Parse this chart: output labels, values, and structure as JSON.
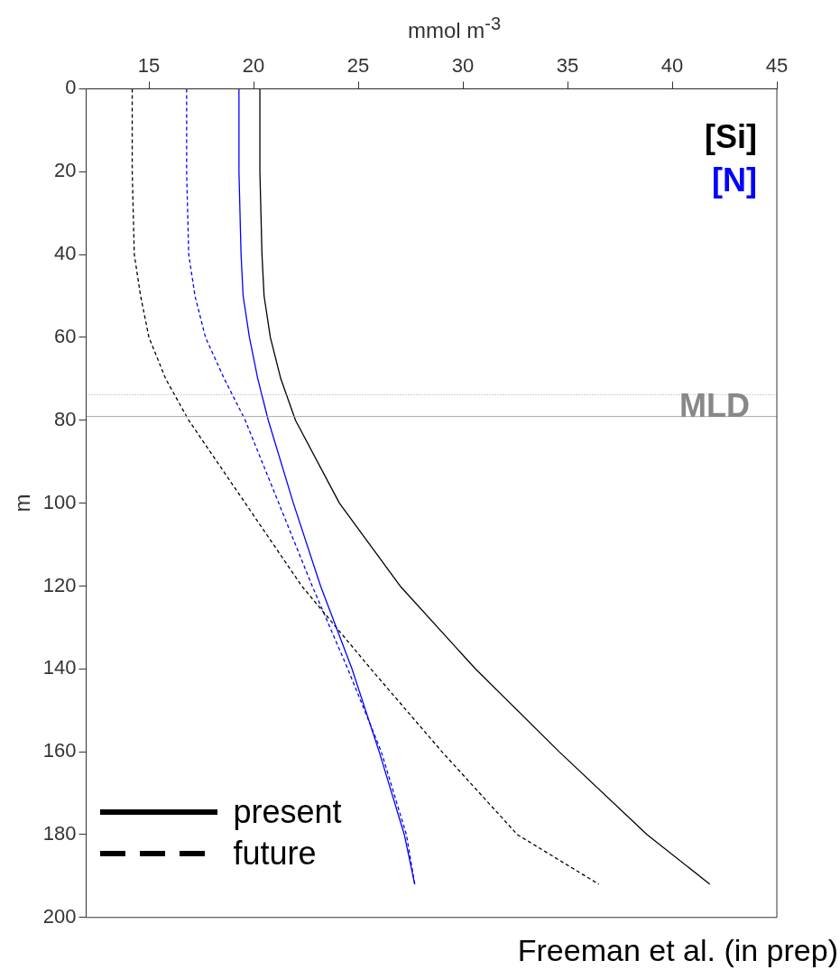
{
  "chart_data": {
    "type": "line",
    "xlabel": "mmol m$^{-3}$",
    "ylabel": "m",
    "xlim": [
      12,
      45
    ],
    "xticks": [
      15,
      20,
      25,
      30,
      35,
      40,
      45
    ],
    "ylim": [
      200,
      0
    ],
    "yticks": [
      0,
      20,
      40,
      60,
      80,
      100,
      120,
      140,
      160,
      180,
      200
    ],
    "grid": false,
    "marker": "none",
    "legend": false,
    "series": [
      {
        "color": "#000000",
        "line_style": "solid",
        "x": [
          20.3,
          20.3,
          20.4,
          20.5,
          20.8,
          21.3,
          22.0,
          24.1,
          27.0,
          30.6,
          34.6,
          38.8,
          41.8
        ],
        "values": [
          0,
          20,
          40,
          50,
          60,
          70,
          80,
          100,
          120,
          140,
          160,
          180,
          192
        ]
      },
      {
        "color": "#0000ff",
        "line_style": "solid",
        "x": [
          19.3,
          19.3,
          19.4,
          19.5,
          19.8,
          20.2,
          20.7,
          21.9,
          23.2,
          24.7,
          26.0,
          27.2,
          27.7
        ],
        "values": [
          0,
          20,
          40,
          50,
          60,
          70,
          80,
          100,
          120,
          140,
          160,
          180,
          192
        ]
      },
      {
        "color": "#000000",
        "line_style": "dashed",
        "x": [
          14.2,
          14.2,
          14.3,
          14.6,
          15.0,
          15.8,
          16.9,
          19.6,
          22.3,
          25.6,
          29.0,
          32.6,
          36.5
        ],
        "values": [
          0,
          20,
          40,
          50,
          60,
          70,
          80,
          100,
          120,
          140,
          160,
          180,
          192
        ]
      },
      {
        "color": "#0000ff",
        "line_style": "dashed",
        "x": [
          16.8,
          16.8,
          16.9,
          17.2,
          17.7,
          18.6,
          19.6,
          21.2,
          22.8,
          24.5,
          26.1,
          27.3,
          27.7
        ],
        "values": [
          0,
          20,
          40,
          50,
          60,
          70,
          80,
          100,
          120,
          140,
          160,
          180,
          192
        ]
      }
    ],
    "ref_lines": [
      {
        "axis": "y",
        "value": 73.8,
        "label": null,
        "color": "#999999",
        "line_style": "dotted"
      },
      {
        "axis": "y",
        "value": 79.1,
        "label": "MLD",
        "color": "#aaaaaa",
        "line_style": "solid"
      }
    ],
    "annotations": [
      "[Si]",
      "[N]",
      "present",
      "future",
      "Freeman et al. (in prep)"
    ]
  }
}
